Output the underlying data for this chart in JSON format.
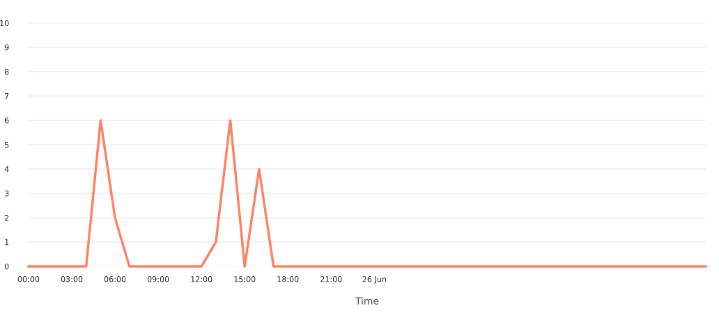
{
  "chart_data": {
    "type": "line",
    "xlabel": "Time",
    "x": [
      0,
      1,
      2,
      3,
      4,
      5,
      6,
      7,
      8,
      9,
      10,
      11,
      12,
      13,
      14,
      15,
      16,
      17,
      18,
      19,
      20,
      21,
      22,
      23,
      24,
      25,
      26,
      27,
      28,
      29,
      30,
      31,
      32,
      33,
      34,
      35,
      36,
      37,
      38,
      39,
      40,
      41,
      42,
      43,
      44,
      45,
      46,
      47
    ],
    "series": [
      {
        "color": "#ff8566",
        "values": [
          0,
          0,
          0,
          0,
          0,
          6,
          2,
          0,
          0,
          0,
          0,
          0,
          0,
          1,
          6,
          0,
          4,
          0,
          0,
          0,
          0,
          0,
          0,
          0,
          0,
          0,
          0,
          0,
          0,
          0,
          0,
          0,
          0,
          0,
          0,
          0,
          0,
          0,
          0,
          0,
          0,
          0,
          0,
          0,
          0,
          0,
          0,
          0
        ]
      }
    ],
    "xlim": [
      0,
      47
    ],
    "xticks": [
      {
        "value": 0,
        "label": "00:00"
      },
      {
        "value": 3,
        "label": "03:00"
      },
      {
        "value": 6,
        "label": "06:00"
      },
      {
        "value": 9,
        "label": "09:00"
      },
      {
        "value": 12,
        "label": "12:00"
      },
      {
        "value": 15,
        "label": "15:00"
      },
      {
        "value": 18,
        "label": "18:00"
      },
      {
        "value": 21,
        "label": "21:00"
      },
      {
        "value": 24,
        "label": "26 Jun"
      }
    ],
    "ylim": [
      0,
      10
    ],
    "yticks": [
      0,
      1,
      2,
      3,
      4,
      5,
      6,
      7,
      8,
      9,
      10
    ],
    "grid": "y",
    "legend": false,
    "marker": "none",
    "line_style": "solid"
  }
}
